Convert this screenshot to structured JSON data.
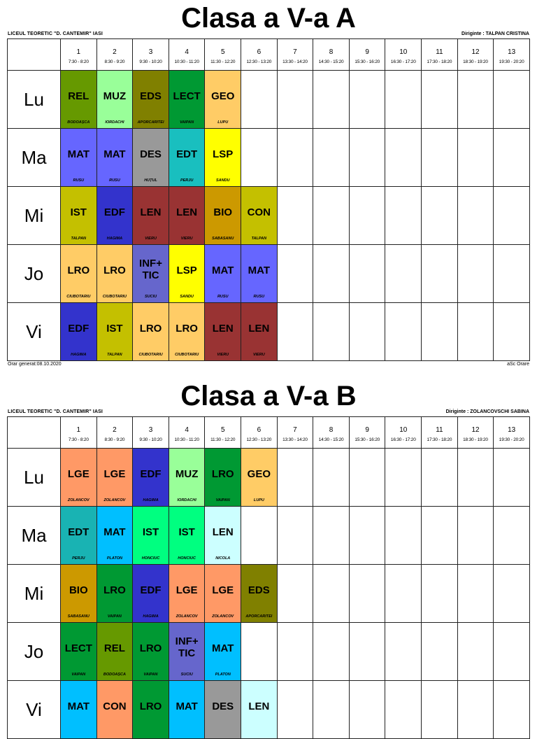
{
  "periods": [
    {
      "num": "1",
      "time": "7:30 - 8:20"
    },
    {
      "num": "2",
      "time": "8:30 - 9:20"
    },
    {
      "num": "3",
      "time": "9:30 - 10:20"
    },
    {
      "num": "4",
      "time": "10:30 - 11:20"
    },
    {
      "num": "5",
      "time": "11:30 - 12:20"
    },
    {
      "num": "6",
      "time": "12:30 - 13:20"
    },
    {
      "num": "7",
      "time": "13:30 - 14:20"
    },
    {
      "num": "8",
      "time": "14:30 - 15:20"
    },
    {
      "num": "9",
      "time": "15:30 - 16:20"
    },
    {
      "num": "10",
      "time": "16:30 - 17:20"
    },
    {
      "num": "11",
      "time": "17:30 - 18:20"
    },
    {
      "num": "12",
      "time": "18:30 - 19:20"
    },
    {
      "num": "13",
      "time": "19:30 - 20:20"
    }
  ],
  "colors": {
    "REL": "#669900",
    "MUZ": "#99FF99",
    "EDS": "#808000",
    "LECT": "#009933",
    "GEO": "#FFCC66",
    "MAT_A": "#6666FF",
    "DES": "#999999",
    "EDT": "#19BFBF",
    "LSP": "#FFFF00",
    "IST": "#C4C000",
    "EDF": "#3333CC",
    "LEN_A": "#993333",
    "BIO": "#CC9900",
    "CON": "#C4C000",
    "LRO_A": "#FFCC66",
    "INFTIC": "#6666CC",
    "LGE": "#FF9966",
    "LRO_B": "#009933",
    "MAT_B": "#00BFFF",
    "IST_B": "#00FF80",
    "LEN_B": "#CCFFFF",
    "CON_B": "#FF9966",
    "EDT_B": "#19B3B3"
  },
  "timetables": [
    {
      "title": "Clasa a V-a A",
      "school": "LICEUL TEORETIC \"D. CANTEMIR\" IASI",
      "homeroom": "Diriginte : TALPAN CRISTINA",
      "generated": "Orar generat:08.10.2020",
      "credit": "aSc Orare",
      "days": [
        {
          "name": "Lu",
          "lessons": [
            {
              "subject": "REL",
              "teacher": "BODOAȘCĂ",
              "color": "#669900"
            },
            {
              "subject": "MUZ",
              "teacher": "IORDACHI",
              "color": "#99FF99"
            },
            {
              "subject": "EDS",
              "teacher": "APORCARITEI",
              "color": "#808000"
            },
            {
              "subject": "LECT",
              "teacher": "VAIPAN",
              "color": "#009933"
            },
            {
              "subject": "GEO",
              "teacher": "LUPU",
              "color": "#FFCC66"
            }
          ]
        },
        {
          "name": "Ma",
          "lessons": [
            {
              "subject": "MAT",
              "teacher": "RUSU",
              "color": "#6666FF"
            },
            {
              "subject": "MAT",
              "teacher": "RUSU",
              "color": "#6666FF"
            },
            {
              "subject": "DES",
              "teacher": "HUȚUL",
              "color": "#999999"
            },
            {
              "subject": "EDT",
              "teacher": "PERJU",
              "color": "#19BFBF"
            },
            {
              "subject": "LSP",
              "teacher": "SANDU",
              "color": "#FFFF00"
            }
          ]
        },
        {
          "name": "Mi",
          "lessons": [
            {
              "subject": "IST",
              "teacher": "TALPAN",
              "color": "#C4C000"
            },
            {
              "subject": "EDF",
              "teacher": "HAGIMĂ",
              "color": "#3333CC"
            },
            {
              "subject": "LEN",
              "teacher": "VIERU",
              "color": "#993333"
            },
            {
              "subject": "LEN",
              "teacher": "VIERU",
              "color": "#993333"
            },
            {
              "subject": "BIO",
              "teacher": "SABASANU",
              "color": "#CC9900"
            },
            {
              "subject": "CON",
              "teacher": "TALPAN",
              "color": "#C4C000"
            }
          ]
        },
        {
          "name": "Jo",
          "lessons": [
            {
              "subject": "LRO",
              "teacher": "CIUBOTARIU",
              "color": "#FFCC66"
            },
            {
              "subject": "LRO",
              "teacher": "CIUBOTARIU",
              "color": "#FFCC66"
            },
            {
              "subject": "INF+ TIC",
              "teacher": "SUCIU",
              "color": "#6666CC"
            },
            {
              "subject": "LSP",
              "teacher": "SANDU",
              "color": "#FFFF00"
            },
            {
              "subject": "MAT",
              "teacher": "RUSU",
              "color": "#6666FF"
            },
            {
              "subject": "MAT",
              "teacher": "RUSU",
              "color": "#6666FF"
            }
          ]
        },
        {
          "name": "Vi",
          "lessons": [
            {
              "subject": "EDF",
              "teacher": "HAGIMĂ",
              "color": "#3333CC"
            },
            {
              "subject": "IST",
              "teacher": "TALPAN",
              "color": "#C4C000"
            },
            {
              "subject": "LRO",
              "teacher": "CIUBOTARIU",
              "color": "#FFCC66"
            },
            {
              "subject": "LRO",
              "teacher": "CIUBOTARIU",
              "color": "#FFCC66"
            },
            {
              "subject": "LEN",
              "teacher": "VIERU",
              "color": "#993333"
            },
            {
              "subject": "LEN",
              "teacher": "VIERU",
              "color": "#993333"
            }
          ]
        }
      ]
    },
    {
      "title": "Clasa a V-a B",
      "school": "LICEUL TEORETIC \"D. CANTEMIR\" IASI",
      "homeroom": "Diriginte : ZOLANCOVSCHI SABINA",
      "days": [
        {
          "name": "Lu",
          "lessons": [
            {
              "subject": "LGE",
              "teacher": "ZOLANCOV",
              "color": "#FF9966"
            },
            {
              "subject": "LGE",
              "teacher": "ZOLANCOV",
              "color": "#FF9966"
            },
            {
              "subject": "EDF",
              "teacher": "HAGIMĂ",
              "color": "#3333CC"
            },
            {
              "subject": "MUZ",
              "teacher": "IORDACHI",
              "color": "#99FF99"
            },
            {
              "subject": "LRO",
              "teacher": "VAIPAN",
              "color": "#009933"
            },
            {
              "subject": "GEO",
              "teacher": "LUPU",
              "color": "#FFCC66"
            }
          ]
        },
        {
          "name": "Ma",
          "lessons": [
            {
              "subject": "EDT",
              "teacher": "PERJU",
              "color": "#19B3B3"
            },
            {
              "subject": "MAT",
              "teacher": "PLATON",
              "color": "#00BFFF"
            },
            {
              "subject": "IST",
              "teacher": "HONCIUC",
              "color": "#00FF80"
            },
            {
              "subject": "IST",
              "teacher": "HONCIUC",
              "color": "#00FF80"
            },
            {
              "subject": "LEN",
              "teacher": "NICOLA",
              "color": "#CCFFFF"
            }
          ]
        },
        {
          "name": "Mi",
          "lessons": [
            {
              "subject": "BIO",
              "teacher": "SABASANU",
              "color": "#CC9900"
            },
            {
              "subject": "LRO",
              "teacher": "VAIPAN",
              "color": "#009933"
            },
            {
              "subject": "EDF",
              "teacher": "HAGIMĂ",
              "color": "#3333CC"
            },
            {
              "subject": "LGE",
              "teacher": "ZOLANCOV",
              "color": "#FF9966"
            },
            {
              "subject": "LGE",
              "teacher": "ZOLANCOV",
              "color": "#FF9966"
            },
            {
              "subject": "EDS",
              "teacher": "APORCARITEI",
              "color": "#808000"
            }
          ]
        },
        {
          "name": "Jo",
          "lessons": [
            {
              "subject": "LECT",
              "teacher": "VAIPAN",
              "color": "#009933"
            },
            {
              "subject": "REL",
              "teacher": "BODOAȘCĂ",
              "color": "#669900"
            },
            {
              "subject": "LRO",
              "teacher": "VAIPAN",
              "color": "#009933"
            },
            {
              "subject": "INF+ TIC",
              "teacher": "SUCIU",
              "color": "#6666CC"
            },
            {
              "subject": "MAT",
              "teacher": "PLATON",
              "color": "#00BFFF"
            }
          ]
        },
        {
          "name": "Vi",
          "lessons": [
            {
              "subject": "MAT",
              "teacher": "",
              "color": "#00BFFF"
            },
            {
              "subject": "CON",
              "teacher": "",
              "color": "#FF9966"
            },
            {
              "subject": "LRO",
              "teacher": "",
              "color": "#009933"
            },
            {
              "subject": "MAT",
              "teacher": "",
              "color": "#00BFFF"
            },
            {
              "subject": "DES",
              "teacher": "",
              "color": "#999999"
            },
            {
              "subject": "LEN",
              "teacher": "",
              "color": "#CCFFFF"
            }
          ]
        }
      ]
    }
  ]
}
